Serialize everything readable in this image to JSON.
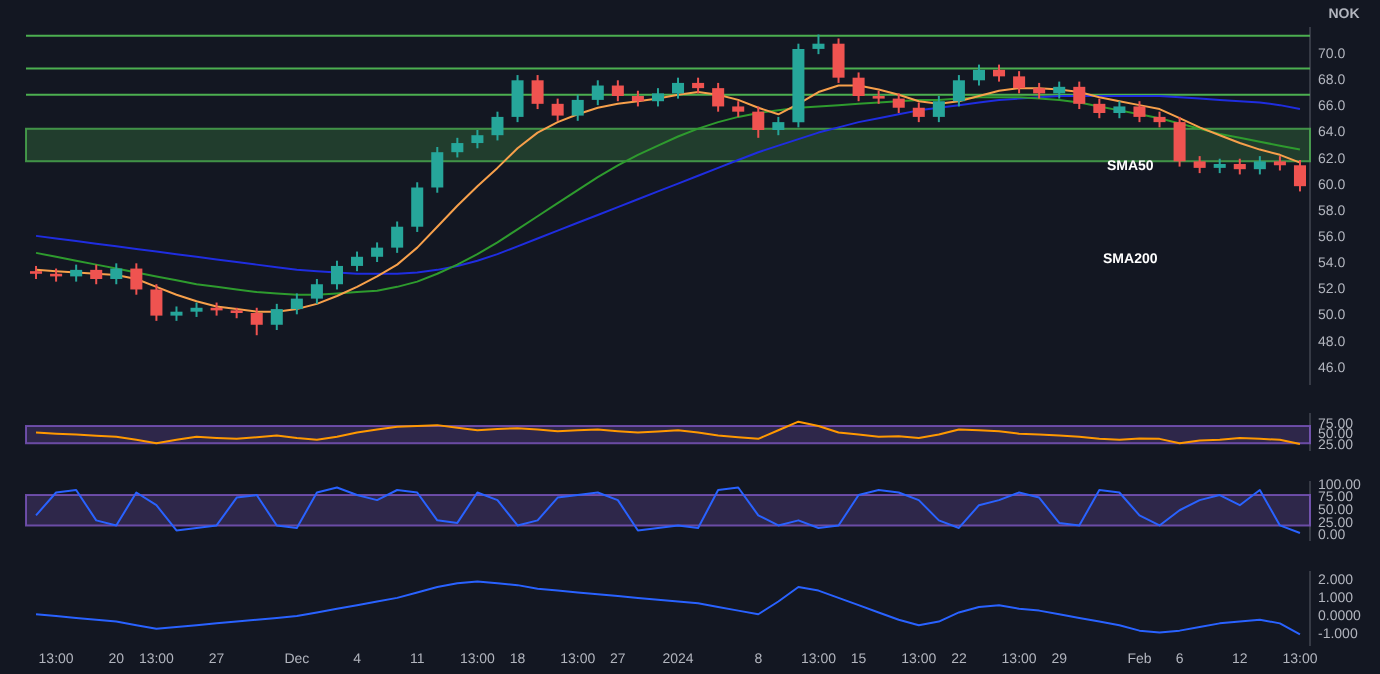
{
  "chart_data": [
    {
      "type": "candlestick",
      "ylabel": "NOK",
      "tick_labels": "y",
      "grid": false,
      "categories": [
        null,
        null,
        null,
        null,
        null,
        null,
        null,
        null,
        null,
        null,
        null,
        null,
        null,
        null,
        null,
        null,
        null,
        null,
        null,
        null,
        null,
        null,
        null,
        null,
        null,
        null,
        null,
        null,
        null,
        null,
        null,
        null,
        null,
        null,
        null,
        null,
        null,
        null,
        null,
        null,
        null,
        null,
        null,
        null,
        null,
        null,
        null,
        null,
        null,
        null,
        null,
        null,
        null,
        null,
        null,
        null,
        null,
        null,
        null,
        null,
        null,
        null,
        null,
        null
      ],
      "ohlc": [
        [
          53.4,
          53.8,
          52.8,
          53.2
        ],
        [
          53.2,
          53.6,
          52.6,
          53
        ],
        [
          53,
          53.9,
          52.6,
          53.5
        ],
        [
          53.5,
          53.9,
          52.4,
          52.8
        ],
        [
          52.8,
          54,
          52.4,
          53.6
        ],
        [
          53.6,
          54,
          51.6,
          52
        ],
        [
          52,
          52.4,
          49.6,
          50
        ],
        [
          50,
          50.7,
          49.6,
          50.3
        ],
        [
          50.3,
          51,
          49.9,
          50.6
        ],
        [
          50.6,
          51,
          50,
          50.4
        ],
        [
          50.4,
          50.6,
          49.8,
          50.2
        ],
        [
          50.2,
          50.6,
          48.5,
          49.3
        ],
        [
          49.3,
          50.9,
          48.9,
          50.5
        ],
        [
          50.5,
          51.7,
          50.1,
          51.3
        ],
        [
          51.3,
          52.8,
          50.9,
          52.4
        ],
        [
          52.4,
          54.2,
          52,
          53.8
        ],
        [
          53.8,
          54.9,
          53.4,
          54.5
        ],
        [
          54.5,
          55.6,
          54.1,
          55.2
        ],
        [
          55.2,
          57.2,
          54.8,
          56.8
        ],
        [
          56.8,
          60.2,
          56.4,
          59.8
        ],
        [
          59.8,
          62.9,
          59.4,
          62.5
        ],
        [
          62.5,
          63.6,
          62.1,
          63.2
        ],
        [
          63.2,
          64.2,
          62.8,
          63.8
        ],
        [
          63.8,
          65.6,
          63.4,
          65.2
        ],
        [
          65.2,
          68.4,
          64.8,
          68
        ],
        [
          68,
          68.4,
          65.8,
          66.2
        ],
        [
          66.2,
          66.6,
          64.9,
          65.3
        ],
        [
          65.3,
          66.9,
          64.9,
          66.5
        ],
        [
          66.5,
          68,
          66.1,
          67.6
        ],
        [
          67.6,
          68,
          66.4,
          66.8
        ],
        [
          66.8,
          67.2,
          66,
          66.4
        ],
        [
          66.4,
          67.4,
          66,
          67
        ],
        [
          67,
          68.2,
          66.6,
          67.8
        ],
        [
          67.8,
          68.2,
          67,
          67.4
        ],
        [
          67.4,
          67.8,
          65.6,
          66
        ],
        [
          66,
          66.4,
          65.2,
          65.6
        ],
        [
          65.6,
          66,
          63.6,
          64.2
        ],
        [
          64.2,
          65.2,
          63.8,
          64.8
        ],
        [
          64.8,
          70.8,
          64.4,
          70.4
        ],
        [
          70.4,
          71.5,
          70,
          70.8
        ],
        [
          70.8,
          71.2,
          67.8,
          68.2
        ],
        [
          68.2,
          68.6,
          66.4,
          66.8
        ],
        [
          66.8,
          67.2,
          66.2,
          66.6
        ],
        [
          66.6,
          67,
          65.5,
          65.9
        ],
        [
          65.9,
          66.3,
          64.8,
          65.2
        ],
        [
          65.2,
          66.8,
          64.8,
          66.4
        ],
        [
          66.4,
          68.4,
          66,
          68
        ],
        [
          68,
          69.2,
          67.6,
          68.8
        ],
        [
          68.8,
          69.2,
          67.9,
          68.3
        ],
        [
          68.3,
          68.7,
          67,
          67.4
        ],
        [
          67.4,
          67.8,
          66.6,
          67
        ],
        [
          67,
          67.9,
          66.6,
          67.5
        ],
        [
          67.5,
          67.9,
          65.8,
          66.2
        ],
        [
          66.2,
          66.6,
          65.1,
          65.5
        ],
        [
          65.5,
          66.4,
          65.1,
          66
        ],
        [
          66,
          66.4,
          64.8,
          65.2
        ],
        [
          65.2,
          65.6,
          64.4,
          64.8
        ],
        [
          64.8,
          65.2,
          61.4,
          61.8
        ],
        [
          61.8,
          62.2,
          60.9,
          61.3
        ],
        [
          61.3,
          62,
          60.9,
          61.6
        ],
        [
          61.6,
          62,
          60.8,
          61.2
        ],
        [
          61.2,
          62.2,
          60.8,
          61.8
        ],
        [
          61.8,
          62.2,
          61.1,
          61.5
        ],
        [
          61.5,
          61.9,
          59.5,
          59.9
        ]
      ],
      "series": [
        {
          "type": "line",
          "color": "#f7a04b",
          "values": [
            53.5,
            53.4,
            53.3,
            53.2,
            53.1,
            52.8,
            52.2,
            51.6,
            51.1,
            50.7,
            50.5,
            50.3,
            50.3,
            50.5,
            50.9,
            51.5,
            52.2,
            53,
            53.9,
            55.2,
            56.8,
            58.4,
            59.9,
            61.3,
            62.8,
            64,
            64.8,
            65.4,
            65.9,
            66.2,
            66.4,
            66.6,
            66.9,
            67.1,
            66.9,
            66.5,
            65.9,
            65.4,
            66.2,
            67.1,
            67.6,
            67.6,
            67.3,
            66.9,
            66.4,
            66.2,
            66.4,
            66.8,
            67.2,
            67.4,
            67.4,
            67.3,
            67.1,
            66.7,
            66.4,
            66.1,
            65.8,
            65.1,
            64.4,
            63.8,
            63.2,
            62.7,
            62.3,
            61.7
          ]
        },
        {
          "type": "line",
          "color": "#2e9b2e",
          "values": [
            54.8,
            54.5,
            54.2,
            53.9,
            53.6,
            53.3,
            53,
            52.7,
            52.4,
            52.2,
            52,
            51.8,
            51.7,
            51.6,
            51.6,
            51.7,
            51.8,
            51.9,
            52.2,
            52.6,
            53.2,
            53.9,
            54.7,
            55.6,
            56.6,
            57.6,
            58.6,
            59.6,
            60.6,
            61.5,
            62.3,
            63,
            63.7,
            64.3,
            64.8,
            65.2,
            65.5,
            65.7,
            65.9,
            66,
            66.1,
            66.2,
            66.3,
            66.4,
            66.5,
            66.5,
            66.6,
            66.7,
            66.7,
            66.7,
            66.6,
            66.5,
            66.3,
            66,
            65.7,
            65.4,
            65.1,
            64.7,
            64.3,
            63.9,
            63.6,
            63.3,
            63,
            62.7
          ]
        },
        {
          "type": "line",
          "color": "#1f2de0",
          "values": [
            56.1,
            55.9,
            55.7,
            55.5,
            55.3,
            55.1,
            54.9,
            54.7,
            54.5,
            54.3,
            54.1,
            53.9,
            53.7,
            53.5,
            53.4,
            53.3,
            53.2,
            53.2,
            53.2,
            53.3,
            53.5,
            53.8,
            54.2,
            54.7,
            55.3,
            55.9,
            56.5,
            57.1,
            57.7,
            58.3,
            58.9,
            59.5,
            60.1,
            60.7,
            61.3,
            61.9,
            62.5,
            63,
            63.5,
            64,
            64.4,
            64.8,
            65.1,
            65.4,
            65.7,
            65.9,
            66.1,
            66.3,
            66.5,
            66.6,
            66.7,
            66.8,
            66.8,
            66.8,
            66.8,
            66.8,
            66.8,
            66.7,
            66.6,
            66.5,
            66.4,
            66.3,
            66.1,
            65.8
          ]
        }
      ],
      "ylim": [
        44.8,
        72
      ],
      "yticks": [
        {
          "value": 46,
          "label": "46.0"
        },
        {
          "value": 48,
          "label": "48.0"
        },
        {
          "value": 50,
          "label": "50.0"
        },
        {
          "value": 52,
          "label": "52.0"
        },
        {
          "value": 54,
          "label": "54.0"
        },
        {
          "value": 56,
          "label": "56.0"
        },
        {
          "value": 58,
          "label": "58.0"
        },
        {
          "value": 60,
          "label": "60.0"
        },
        {
          "value": 62,
          "label": "62.0"
        },
        {
          "value": 64,
          "label": "64.0"
        },
        {
          "value": 66,
          "label": "66.0"
        },
        {
          "value": 68,
          "label": "68.0"
        },
        {
          "value": 70,
          "label": "70.0"
        }
      ],
      "ref_lines": [
        {
          "axis": "y",
          "value": 71.4,
          "color": "#4caf50"
        },
        {
          "axis": "y",
          "value": 68.9,
          "color": "#4caf50"
        },
        {
          "axis": "y",
          "value": 66.9,
          "color": "#4caf50"
        }
      ],
      "bands": [
        {
          "axis": "y",
          "from": 61.8,
          "to": 64.3,
          "color": "#4caf50"
        }
      ],
      "annotations": [
        "SMA50",
        "SMA200"
      ]
    },
    {
      "type": "line",
      "tick_labels": "y",
      "grid": false,
      "categories": [
        null,
        null,
        null,
        null,
        null,
        null,
        null,
        null,
        null,
        null,
        null,
        null,
        null,
        null,
        null,
        null,
        null,
        null,
        null,
        null,
        null,
        null,
        null,
        null,
        null,
        null,
        null,
        null,
        null,
        null,
        null,
        null,
        null,
        null,
        null,
        null,
        null,
        null,
        null,
        null,
        null,
        null,
        null,
        null,
        null,
        null,
        null,
        null,
        null,
        null,
        null,
        null,
        null,
        null,
        null,
        null,
        null,
        null,
        null,
        null,
        null,
        null,
        null,
        null
      ],
      "series": [
        {
          "color": "#ff9800",
          "values": [
            55,
            52,
            50,
            47,
            45,
            38,
            30,
            38,
            45,
            42,
            40,
            44,
            48,
            42,
            38,
            45,
            55,
            62,
            68,
            70,
            72,
            66,
            60,
            63,
            65,
            62,
            58,
            60,
            62,
            58,
            55,
            57,
            60,
            55,
            48,
            44,
            40,
            60,
            80,
            70,
            55,
            50,
            45,
            46,
            42,
            50,
            62,
            60,
            58,
            52,
            50,
            48,
            45,
            40,
            38,
            41,
            40,
            30,
            36,
            38,
            42,
            40,
            38,
            28
          ]
        }
      ],
      "ylim": [
        15,
        97
      ],
      "yticks": [
        {
          "value": 25,
          "label": "25.00"
        },
        {
          "value": 50,
          "label": "50.00"
        },
        {
          "value": 75,
          "label": "75.00"
        }
      ],
      "bands": [
        {
          "axis": "y",
          "from": 30,
          "to": 70,
          "color": "#7e57c2"
        }
      ]
    },
    {
      "type": "line",
      "tick_labels": "y",
      "grid": false,
      "categories": [
        null,
        null,
        null,
        null,
        null,
        null,
        null,
        null,
        null,
        null,
        null,
        null,
        null,
        null,
        null,
        null,
        null,
        null,
        null,
        null,
        null,
        null,
        null,
        null,
        null,
        null,
        null,
        null,
        null,
        null,
        null,
        null,
        null,
        null,
        null,
        null,
        null,
        null,
        null,
        null,
        null,
        null,
        null,
        null,
        null,
        null,
        null,
        null,
        null,
        null,
        null,
        null,
        null,
        null,
        null,
        null,
        null,
        null,
        null,
        null,
        null,
        null,
        null,
        null
      ],
      "series": [
        {
          "color": "#2962ff",
          "values": [
            40,
            85,
            90,
            30,
            20,
            85,
            60,
            10,
            15,
            20,
            75,
            80,
            20,
            15,
            85,
            95,
            80,
            70,
            90,
            85,
            30,
            25,
            85,
            70,
            20,
            30,
            75,
            80,
            85,
            70,
            10,
            15,
            20,
            15,
            90,
            95,
            40,
            20,
            30,
            15,
            20,
            80,
            90,
            85,
            70,
            30,
            15,
            60,
            70,
            85,
            75,
            25,
            20,
            90,
            85,
            40,
            20,
            50,
            70,
            80,
            60,
            90,
            20,
            5
          ]
        }
      ],
      "ylim": [
        -8,
        105
      ],
      "yticks": [
        {
          "value": 0,
          "label": "0.00"
        },
        {
          "value": 25,
          "label": "25.00"
        },
        {
          "value": 50,
          "label": "50.00"
        },
        {
          "value": 75,
          "label": "75.00"
        },
        {
          "value": 100,
          "label": "100.00"
        }
      ],
      "bands": [
        {
          "axis": "y",
          "from": 20,
          "to": 80,
          "color": "#7e57c2"
        }
      ]
    },
    {
      "type": "line",
      "grid": false,
      "categories": [
        null,
        "13:00",
        null,
        null,
        "20",
        null,
        "13:00",
        null,
        null,
        "27",
        null,
        null,
        null,
        "Dec",
        null,
        null,
        "4",
        null,
        null,
        "11",
        null,
        null,
        "13:00",
        null,
        "18",
        null,
        null,
        "13:00",
        null,
        "27",
        null,
        null,
        "2024",
        null,
        null,
        null,
        "8",
        null,
        null,
        "13:00",
        null,
        "15",
        null,
        null,
        "13:00",
        null,
        "22",
        null,
        null,
        "13:00",
        null,
        "29",
        null,
        null,
        null,
        "Feb",
        null,
        "6",
        null,
        null,
        "12",
        null,
        null,
        "13:00"
      ],
      "series": [
        {
          "color": "#2962ff",
          "values": [
            0.1,
            0,
            -0.1,
            -0.2,
            -0.3,
            -0.5,
            -0.7,
            -0.6,
            -0.5,
            -0.4,
            -0.3,
            -0.2,
            -0.1,
            0,
            0.2,
            0.4,
            0.6,
            0.8,
            1.0,
            1.3,
            1.6,
            1.8,
            1.9,
            1.8,
            1.7,
            1.5,
            1.4,
            1.3,
            1.2,
            1.1,
            1.0,
            0.9,
            0.8,
            0.7,
            0.5,
            0.3,
            0.1,
            0.8,
            1.6,
            1.4,
            1.0,
            0.6,
            0.2,
            -0.2,
            -0.5,
            -0.3,
            0.2,
            0.5,
            0.6,
            0.4,
            0.3,
            0.1,
            -0.1,
            -0.3,
            -0.5,
            -0.8,
            -0.9,
            -0.8,
            -0.6,
            -0.4,
            -0.3,
            -0.2,
            -0.4,
            -1.0
          ]
        }
      ],
      "ylim": [
        -1.6,
        2.4
      ],
      "yticks": [
        {
          "value": -1,
          "label": "-1.000"
        },
        {
          "value": 0,
          "label": "0.0000"
        },
        {
          "value": 1,
          "label": "1.000"
        },
        {
          "value": 2,
          "label": "2.000"
        }
      ]
    }
  ]
}
